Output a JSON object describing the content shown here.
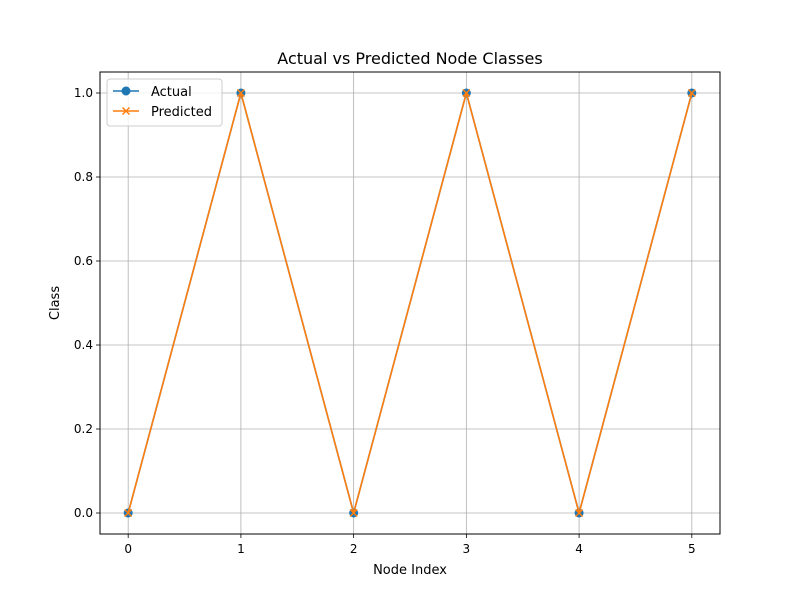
{
  "chart_data": {
    "type": "line",
    "title": "Actual vs Predicted Node Classes",
    "xlabel": "Node Index",
    "ylabel": "Class",
    "x": [
      0,
      1,
      2,
      3,
      4,
      5
    ],
    "xlim": [
      -0.25,
      5.25
    ],
    "ylim": [
      -0.05,
      1.05
    ],
    "xticks": [
      0,
      1,
      2,
      3,
      4,
      5
    ],
    "yticks": [
      0.0,
      0.2,
      0.4,
      0.6,
      0.8,
      1.0
    ],
    "xtick_labels": [
      "0",
      "1",
      "2",
      "3",
      "4",
      "5"
    ],
    "ytick_labels": [
      "0.0",
      "0.2",
      "0.4",
      "0.6",
      "0.8",
      "1.0"
    ],
    "grid": true,
    "legend_position": "top-left",
    "series": [
      {
        "name": "Actual",
        "values": [
          0,
          1,
          0,
          1,
          0,
          1
        ],
        "color": "#1f77b4",
        "marker": "circle"
      },
      {
        "name": "Predicted",
        "values": [
          0,
          1,
          0,
          1,
          0,
          1
        ],
        "color": "#ff7f0e",
        "marker": "x"
      }
    ]
  }
}
